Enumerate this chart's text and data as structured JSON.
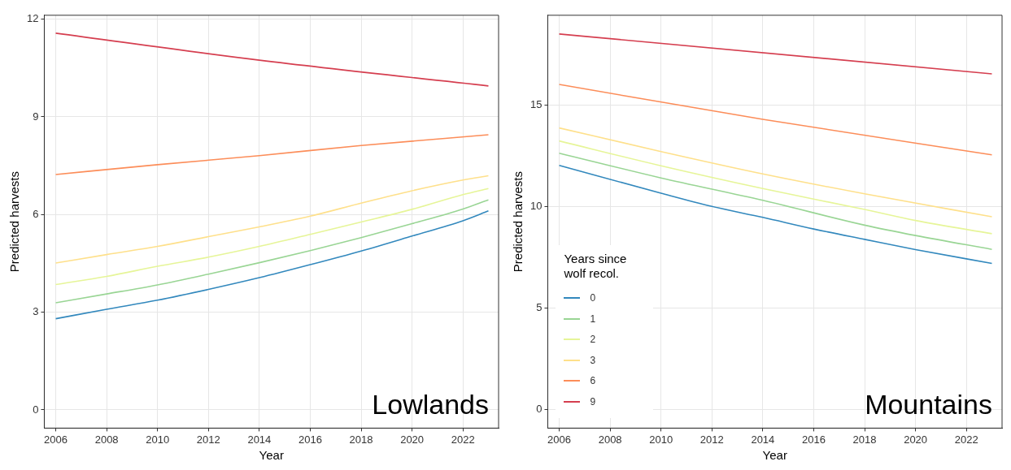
{
  "chart_data": [
    {
      "type": "line",
      "xlabel": "Year",
      "ylabel": "Predicted harvests",
      "xlim": [
        2005.55,
        2023.4
      ],
      "ylim": [
        -0.56,
        12.12
      ],
      "xticks": [
        2006,
        2008,
        2010,
        2012,
        2014,
        2016,
        2018,
        2020,
        2022
      ],
      "yticks": [
        0,
        3,
        6,
        9,
        12
      ],
      "grid": true,
      "legend": false,
      "annotations": [
        "Lowlands"
      ],
      "series": [
        {
          "color": "#3288bd",
          "x": [
            2006,
            2008,
            2010,
            2012,
            2014,
            2016,
            2018,
            2020,
            2022,
            2023
          ],
          "values": [
            2.8,
            3.09,
            3.37,
            3.7,
            4.06,
            4.46,
            4.88,
            5.34,
            5.81,
            6.11
          ]
        },
        {
          "color": "#99d594",
          "x": [
            2006,
            2008,
            2010,
            2012,
            2014,
            2016,
            2018,
            2020,
            2022,
            2023
          ],
          "values": [
            3.29,
            3.56,
            3.84,
            4.17,
            4.52,
            4.89,
            5.29,
            5.72,
            6.17,
            6.45
          ]
        },
        {
          "color": "#e6f598",
          "x": [
            2006,
            2008,
            2010,
            2012,
            2014,
            2016,
            2018,
            2020,
            2022,
            2023
          ],
          "values": [
            3.85,
            4.1,
            4.41,
            4.69,
            5.02,
            5.39,
            5.77,
            6.16,
            6.61,
            6.8
          ]
        },
        {
          "color": "#fee08b",
          "x": [
            2006,
            2008,
            2010,
            2012,
            2014,
            2016,
            2018,
            2020,
            2022,
            2023
          ],
          "values": [
            4.51,
            4.77,
            5.02,
            5.32,
            5.62,
            5.95,
            6.35,
            6.73,
            7.06,
            7.19
          ]
        },
        {
          "color": "#fc8d59",
          "x": [
            2006,
            2010,
            2014,
            2018,
            2023
          ],
          "values": [
            7.23,
            7.53,
            7.81,
            8.12,
            8.45
          ]
        },
        {
          "color": "#d53e4f",
          "x": [
            2006,
            2014,
            2023
          ],
          "values": [
            11.57,
            10.74,
            9.95
          ]
        }
      ]
    },
    {
      "type": "line",
      "xlabel": "Year",
      "ylabel": "Predicted harvests",
      "xlim": [
        2005.55,
        2023.4
      ],
      "ylim": [
        -0.9,
        19.4
      ],
      "xticks": [
        2006,
        2008,
        2010,
        2012,
        2014,
        2016,
        2018,
        2020,
        2022
      ],
      "yticks": [
        0,
        5,
        10,
        15
      ],
      "grid": true,
      "legend": "bottom left",
      "legend_title": "Years since wolf recol.",
      "annotations": [
        "Mountains"
      ],
      "series": [
        {
          "name": "0",
          "color": "#3288bd",
          "x": [
            2006,
            2010,
            2012,
            2014,
            2016,
            2018,
            2020,
            2023
          ],
          "values": [
            12.02,
            10.65,
            10.0,
            9.46,
            8.89,
            8.38,
            7.88,
            7.2
          ]
        },
        {
          "name": "1",
          "color": "#99d594",
          "x": [
            2006,
            2010,
            2014,
            2018,
            2020,
            2023
          ],
          "values": [
            12.62,
            11.4,
            10.3,
            9.08,
            8.57,
            7.89
          ]
        },
        {
          "name": "2",
          "color": "#e6f598",
          "x": [
            2006,
            2010,
            2014,
            2018,
            2020,
            2023
          ],
          "values": [
            13.22,
            12.0,
            10.88,
            9.85,
            9.31,
            8.66
          ]
        },
        {
          "name": "3",
          "color": "#fee08b",
          "x": [
            2006,
            2010,
            2014,
            2018,
            2023
          ],
          "values": [
            13.86,
            12.7,
            11.6,
            10.62,
            9.49
          ]
        },
        {
          "name": "6",
          "color": "#fc8d59",
          "x": [
            2006,
            2014,
            2023
          ],
          "values": [
            16.0,
            14.28,
            12.54
          ]
        },
        {
          "name": "9",
          "color": "#d53e4f",
          "x": [
            2006,
            2023
          ],
          "values": [
            18.48,
            16.52
          ]
        }
      ]
    }
  ]
}
